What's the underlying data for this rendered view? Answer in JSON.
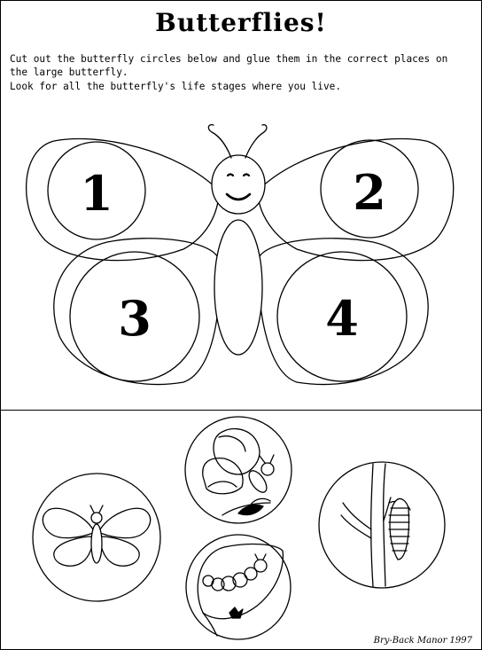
{
  "title": "Butterflies!",
  "instructions": {
    "line1": "Cut out the butterfly circles below and glue them in the correct places on\nthe large butterfly.",
    "line2": "Look for all the butterfly's life stages where you live."
  },
  "circle_numbers": [
    "1",
    "2",
    "3",
    "4"
  ],
  "credit": "Bry-Back Manor 1997"
}
